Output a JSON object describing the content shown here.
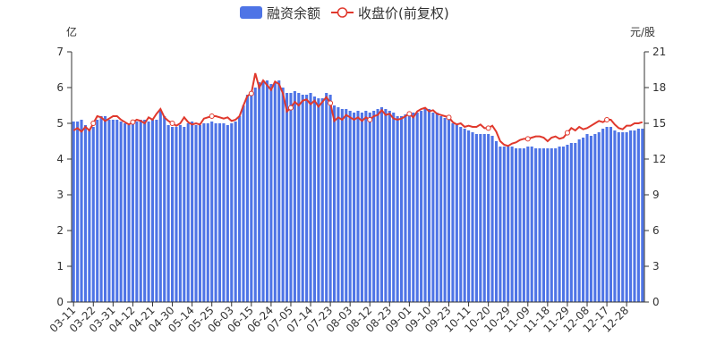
{
  "chart_data": {
    "type": "bar-line",
    "y_label": "亿",
    "y2_label": "元/股",
    "categories": [
      "03-11",
      null,
      null,
      null,
      null,
      "03-22",
      null,
      null,
      null,
      null,
      "03-31",
      null,
      null,
      null,
      null,
      "04-12",
      null,
      null,
      null,
      null,
      "04-21",
      null,
      null,
      null,
      null,
      "04-30",
      null,
      null,
      null,
      null,
      "05-14",
      null,
      null,
      null,
      null,
      "05-25",
      null,
      null,
      null,
      null,
      "06-03",
      null,
      null,
      null,
      null,
      "06-15",
      null,
      null,
      null,
      null,
      "06-24",
      null,
      null,
      null,
      null,
      "07-05",
      null,
      null,
      null,
      null,
      "07-14",
      null,
      null,
      null,
      null,
      "07-23",
      null,
      null,
      null,
      null,
      "08-03",
      null,
      null,
      null,
      null,
      "08-12",
      null,
      null,
      null,
      null,
      "08-23",
      null,
      null,
      null,
      null,
      "09-01",
      null,
      null,
      null,
      null,
      "09-10",
      null,
      null,
      null,
      null,
      "09-23",
      null,
      null,
      null,
      null,
      "10-11",
      null,
      null,
      null,
      null,
      "10-20",
      null,
      null,
      null,
      null,
      "10-29",
      null,
      null,
      null,
      null,
      "11-09",
      null,
      null,
      null,
      null,
      "11-18",
      null,
      null,
      null,
      null,
      "11-29",
      null,
      null,
      null,
      null,
      "12-08",
      null,
      null,
      null,
      null,
      "12-17",
      null,
      null,
      null,
      null,
      "12-28",
      null,
      null,
      null,
      null
    ],
    "series": [
      {
        "name": "融资余额",
        "type": "bar",
        "color": "#4e74e6",
        "values": [
          5.05,
          5.05,
          5.1,
          4.95,
          4.85,
          4.9,
          5.1,
          5.2,
          5.2,
          5.1,
          5.1,
          5.1,
          5.05,
          5.0,
          4.95,
          5.0,
          5.05,
          5.1,
          5.1,
          5.05,
          5.1,
          5.1,
          5.35,
          5.2,
          4.95,
          4.9,
          4.9,
          4.95,
          4.9,
          5.0,
          5.05,
          4.95,
          4.95,
          5.0,
          5.0,
          5.05,
          5.0,
          5.0,
          5.0,
          4.95,
          5.0,
          5.05,
          5.2,
          5.5,
          5.8,
          5.9,
          6.0,
          6.15,
          6.2,
          6.2,
          6.1,
          6.15,
          6.2,
          6.0,
          5.85,
          5.85,
          5.9,
          5.85,
          5.8,
          5.8,
          5.85,
          5.75,
          5.7,
          5.7,
          5.85,
          5.8,
          5.5,
          5.45,
          5.4,
          5.4,
          5.35,
          5.3,
          5.35,
          5.3,
          5.35,
          5.3,
          5.35,
          5.4,
          5.45,
          5.4,
          5.35,
          5.3,
          5.2,
          5.2,
          5.25,
          5.25,
          5.3,
          5.3,
          5.35,
          5.4,
          5.4,
          5.3,
          5.3,
          5.2,
          5.15,
          5.1,
          5.0,
          4.95,
          4.9,
          4.85,
          4.8,
          4.75,
          4.7,
          4.7,
          4.7,
          4.7,
          4.65,
          4.5,
          4.35,
          4.35,
          4.35,
          4.35,
          4.3,
          4.3,
          4.3,
          4.35,
          4.35,
          4.3,
          4.3,
          4.3,
          4.3,
          4.3,
          4.3,
          4.35,
          4.35,
          4.4,
          4.45,
          4.45,
          4.55,
          4.6,
          4.7,
          4.65,
          4.7,
          4.75,
          4.85,
          4.9,
          4.9,
          4.8,
          4.75,
          4.75,
          4.75,
          4.8,
          4.8,
          4.85,
          4.85
        ]
      },
      {
        "name": "收盘价(前复权)",
        "type": "line",
        "axis": "y2",
        "color": "#e0382c",
        "values": [
          14.4,
          14.6,
          14.3,
          14.7,
          14.4,
          15.0,
          15.6,
          15.5,
          15.2,
          15.4,
          15.6,
          15.6,
          15.3,
          15.1,
          14.9,
          15.1,
          15.3,
          15.2,
          15.0,
          15.5,
          15.3,
          15.8,
          16.2,
          15.5,
          15.2,
          15.0,
          14.8,
          15.0,
          15.5,
          15.1,
          14.9,
          15.0,
          14.9,
          15.4,
          15.5,
          15.6,
          15.6,
          15.5,
          15.4,
          15.5,
          15.2,
          15.3,
          15.6,
          16.5,
          17.3,
          17.5,
          19.2,
          18.0,
          18.6,
          18.2,
          17.8,
          18.5,
          18.3,
          17.5,
          16.0,
          16.3,
          16.8,
          16.5,
          16.9,
          17.0,
          16.6,
          16.9,
          16.4,
          16.8,
          17.2,
          16.7,
          15.2,
          15.5,
          15.3,
          15.7,
          15.5,
          15.3,
          15.5,
          15.2,
          15.5,
          15.3,
          15.6,
          15.7,
          16.1,
          15.7,
          15.8,
          15.4,
          15.3,
          15.4,
          15.6,
          15.8,
          15.5,
          16.0,
          16.2,
          16.3,
          16.0,
          16.1,
          15.8,
          15.7,
          15.6,
          15.5,
          15.1,
          14.9,
          15.0,
          14.7,
          14.8,
          14.7,
          14.7,
          14.9,
          14.6,
          14.6,
          14.8,
          14.3,
          13.5,
          13.2,
          13.1,
          13.3,
          13.4,
          13.6,
          13.7,
          13.7,
          13.8,
          13.9,
          13.9,
          13.8,
          13.5,
          13.8,
          13.9,
          13.7,
          13.8,
          14.2,
          14.6,
          14.4,
          14.7,
          14.5,
          14.6,
          14.8,
          15.0,
          15.2,
          15.1,
          15.3,
          15.3,
          14.9,
          14.6,
          14.5,
          14.8,
          14.8,
          15.0,
          15.0,
          15.1
        ]
      }
    ],
    "ylim": [
      0,
      7
    ],
    "yticks": [
      0,
      1,
      2,
      3,
      4,
      5,
      6,
      7
    ],
    "y2lim": [
      0,
      21
    ],
    "y2ticks": [
      0,
      3,
      6,
      9,
      12,
      15,
      18,
      21
    ],
    "legend": "top"
  }
}
